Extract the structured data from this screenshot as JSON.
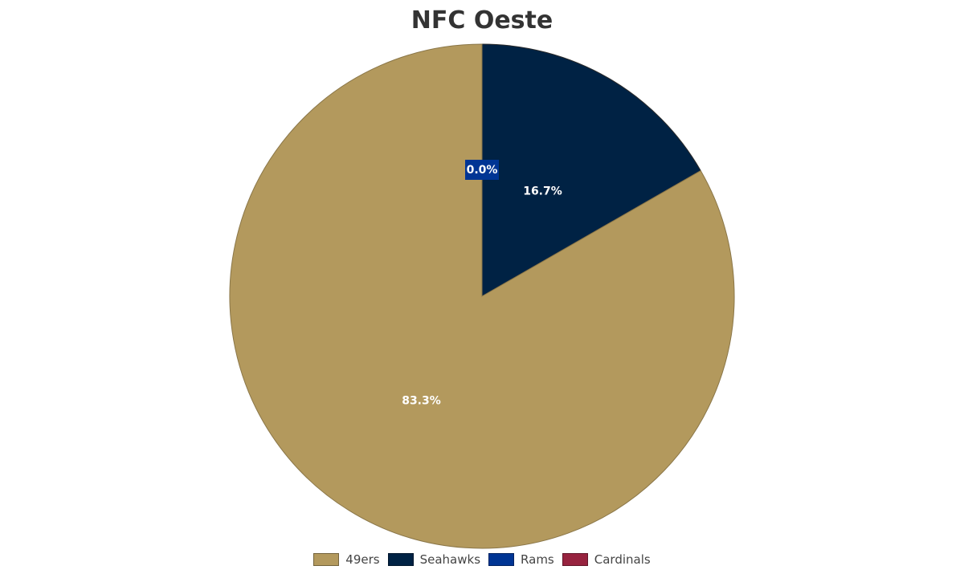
{
  "chart_data": {
    "type": "pie",
    "title": "NFC Oeste",
    "legend_position": "bottom",
    "slices": [
      {
        "name": "49ers",
        "value": 83.3,
        "label": "83.3%",
        "color": "#B3995D"
      },
      {
        "name": "Seahawks",
        "value": 16.7,
        "label": "16.7%",
        "color": "#002244"
      },
      {
        "name": "Rams",
        "value": 0.0,
        "label": "0.0%",
        "color": "#003594"
      },
      {
        "name": "Cardinals",
        "value": 0.0,
        "label": "",
        "color": "#97233F"
      }
    ]
  }
}
